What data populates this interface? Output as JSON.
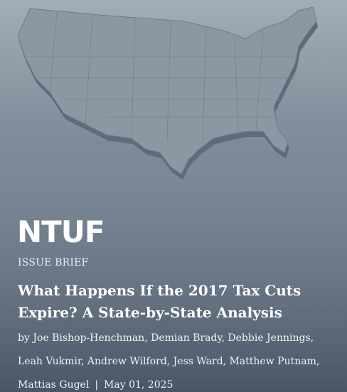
{
  "logo": "NTUF",
  "kicker": "ISSUE BRIEF",
  "title": "What Happens If the 2017 Tax Cuts Expire? A State-by-State Analysis",
  "byline": "by Joe Bishop-Henchman, Demian Brady, Debbie Jennings, Leah Vukmir, Andrew Wilford, Jess Ward, Matthew Putnam, Mattias Gugel",
  "separator": "|",
  "date": "May 01, 2025"
}
